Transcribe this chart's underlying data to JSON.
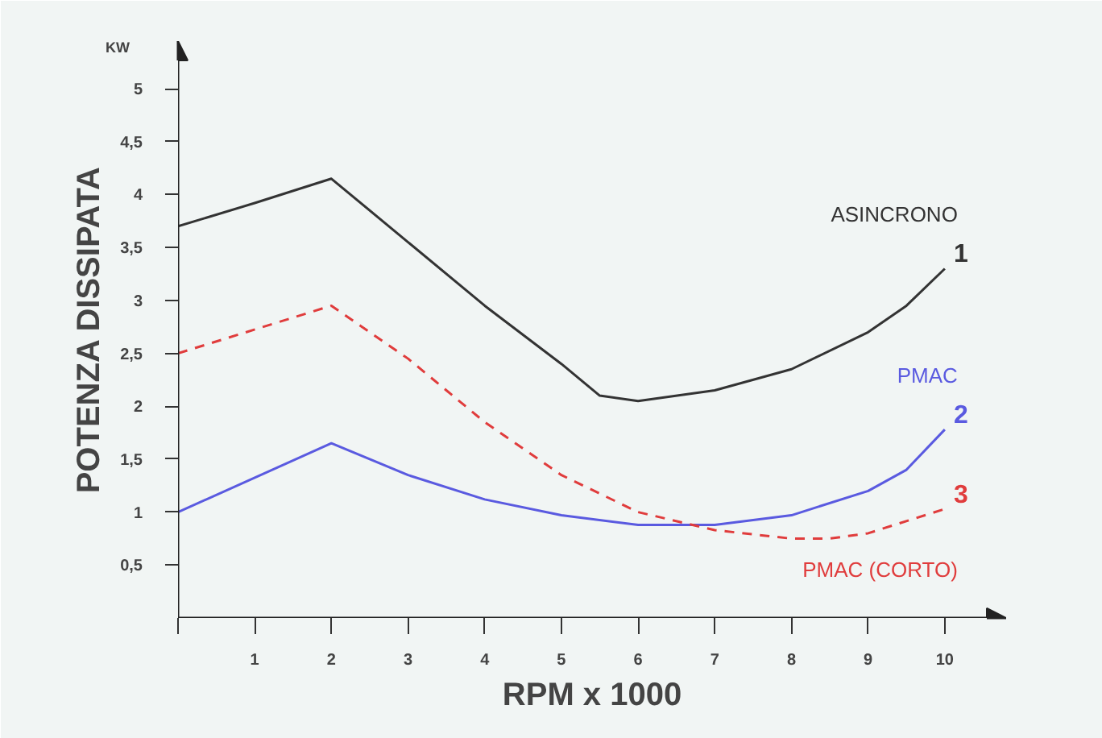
{
  "chart_data": {
    "type": "line",
    "xlabel": "RPM x 1000",
    "ylabel": "POTENZA DISSIPATA",
    "xlim": [
      0,
      10.8
    ],
    "ylim": [
      0,
      5.45
    ],
    "xticks": [
      {
        "value": 0,
        "label": null
      },
      1,
      2,
      3,
      4,
      5,
      6,
      7,
      8,
      9,
      10
    ],
    "yticks": [
      {
        "value": 0.5,
        "label": "0,5"
      },
      1,
      {
        "value": 1.5,
        "label": "1,5"
      },
      2,
      {
        "value": 2.5,
        "label": "2,5"
      },
      3,
      {
        "value": 3.5,
        "label": "3,5"
      },
      4,
      {
        "value": 4.5,
        "label": "4,5"
      },
      5
    ],
    "grid": false,
    "legend": false,
    "marker": "none",
    "series": [
      {
        "name": "ASINCRONO",
        "color": "#333333",
        "line_style": "solid",
        "x": [
          0,
          1,
          2,
          3,
          4,
          5,
          5.5,
          6,
          7,
          8,
          9,
          9.5,
          10
        ],
        "values": [
          3.7,
          3.92,
          4.15,
          3.55,
          2.95,
          2.4,
          2.1,
          2.05,
          2.15,
          2.35,
          2.7,
          2.95,
          3.3
        ]
      },
      {
        "name": "PMAC",
        "color": "#5a5ae0",
        "line_style": "solid",
        "x": [
          0,
          2,
          3,
          4,
          5,
          6,
          7,
          8,
          9,
          9.5,
          10
        ],
        "values": [
          1.0,
          1.65,
          1.35,
          1.12,
          0.97,
          0.88,
          0.88,
          0.97,
          1.2,
          1.4,
          1.78
        ]
      },
      {
        "name": "PMAC (CORTO)",
        "color": "#e03c3c",
        "line_style": "dashed",
        "x": [
          0,
          2,
          3,
          4,
          5,
          6,
          7,
          8,
          8.5,
          9,
          10
        ],
        "values": [
          2.5,
          2.95,
          2.45,
          1.85,
          1.35,
          1.0,
          0.83,
          0.75,
          0.75,
          0.8,
          1.03
        ]
      }
    ],
    "annotations": [
      "KW",
      "1",
      "2",
      "3"
    ]
  }
}
